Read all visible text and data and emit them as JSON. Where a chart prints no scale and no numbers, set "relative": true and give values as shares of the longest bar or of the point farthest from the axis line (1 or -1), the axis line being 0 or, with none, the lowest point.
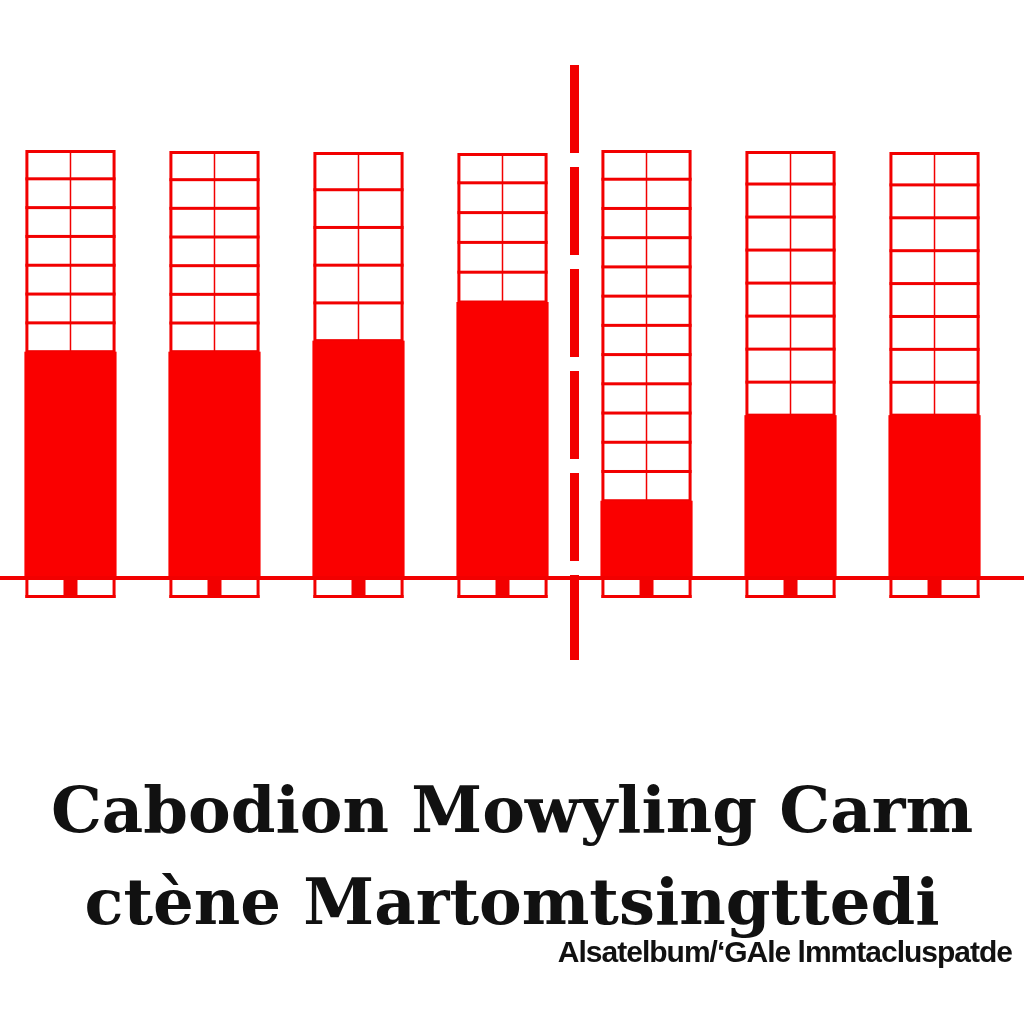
{
  "chart_data": {
    "type": "bar",
    "title": "Cabodion Mowyling Carm ctène Martomtsingttedi",
    "subtitle": "Alsatelbum/‘GAle lmmtacluspatde",
    "categories": [
      null,
      null,
      null,
      null,
      null,
      null,
      null
    ],
    "values": [
      0.82,
      0.82,
      0.86,
      1,
      0.28,
      0.59,
      0.59
    ],
    "color": "#fa0000",
    "relative": true
  }
}
